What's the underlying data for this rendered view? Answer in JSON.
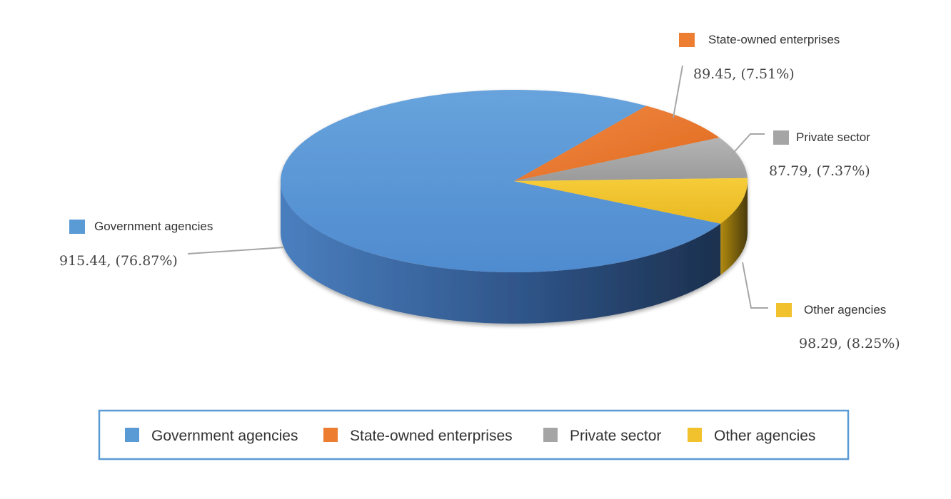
{
  "chart_data": {
    "type": "pie",
    "style": "3d",
    "title": "",
    "slices": [
      {
        "name": "Government agencies",
        "value": 915.44,
        "percent": "76.87%",
        "label": "915.44, (76.87%)",
        "color": "#5b9bd5"
      },
      {
        "name": "State-owned enterprises",
        "value": 89.45,
        "percent": "7.51%",
        "label": "89.45, (7.51%)",
        "color": "#ed7d31"
      },
      {
        "name": "Private sector",
        "value": 87.79,
        "percent": "7.37%",
        "label": "87.79, (7.37%)",
        "color": "#a5a5a5"
      },
      {
        "name": "Other agencies",
        "value": 98.29,
        "percent": "8.25%",
        "label": "98.29, (8.25%)",
        "color": "#f2c12e"
      }
    ],
    "legend": {
      "placement": "bottom",
      "border_color": "#5b9bd5",
      "items": [
        "Government agencies",
        "State-owned enterprises",
        "Private sector",
        "Other agencies"
      ]
    }
  }
}
